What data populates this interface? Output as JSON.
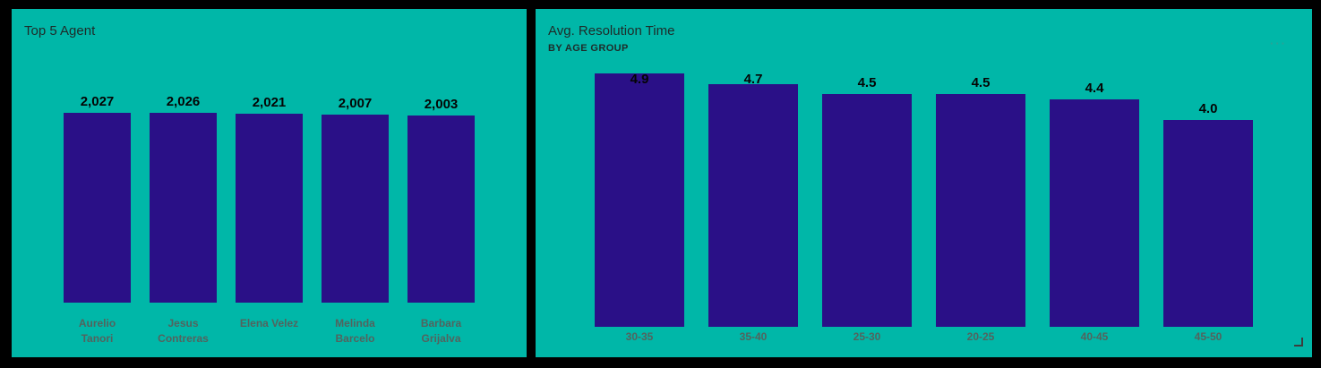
{
  "colors": {
    "canvas_background": "#000000",
    "panel_background": "#00B7A8",
    "bar_fill": "#2A1087",
    "title_text": "#1E2B29",
    "value_label_text": "#040404",
    "category_label_text": "#52635E",
    "more_options_icon": "#2AA296",
    "resize_handle": "#3D3D3D"
  },
  "icons": {
    "more_options_glyph": "···"
  },
  "chart_data": [
    {
      "type": "bar",
      "title": "Top 5 Agent",
      "categories": [
        "Aurelio Tanori",
        "Jesus Contreras",
        "Elena Velez",
        "Melinda Barcelo",
        "Barbara Grijalva"
      ],
      "values": [
        2027,
        2026,
        2021,
        2007,
        2003
      ],
      "value_labels": [
        "2,027",
        "2,026",
        "2,021",
        "2,007",
        "2,003"
      ],
      "xlabel": "",
      "ylabel": "",
      "ylim": [
        0,
        2027
      ],
      "grid": false,
      "legend": "none",
      "data_labels": "on"
    },
    {
      "type": "bar",
      "title": "Avg. Resolution Time",
      "subtitle": "BY AGE GROUP",
      "categories": [
        "30-35",
        "35-40",
        "25-30",
        "20-25",
        "40-45",
        "45-50"
      ],
      "values": [
        4.9,
        4.7,
        4.5,
        4.5,
        4.4,
        4.0
      ],
      "value_labels": [
        "4.9",
        "4.7",
        "4.5",
        "4.5",
        "4.4",
        "4.0"
      ],
      "xlabel": "",
      "ylabel": "",
      "ylim": [
        0,
        4.9
      ],
      "grid": false,
      "legend": "none",
      "data_labels": "on"
    }
  ]
}
